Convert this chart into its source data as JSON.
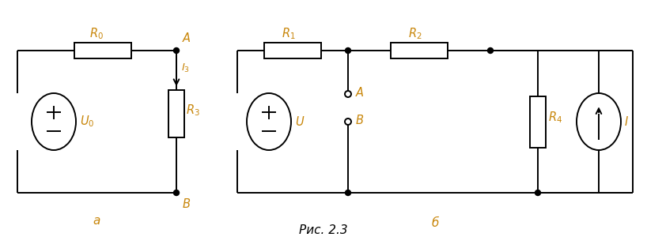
{
  "bg_color": "#ffffff",
  "line_color": "#000000",
  "label_color": "#c8860a",
  "fig_caption": "Рис. 2.3",
  "fig_width": 8.18,
  "fig_height": 3.19,
  "dpi": 100
}
